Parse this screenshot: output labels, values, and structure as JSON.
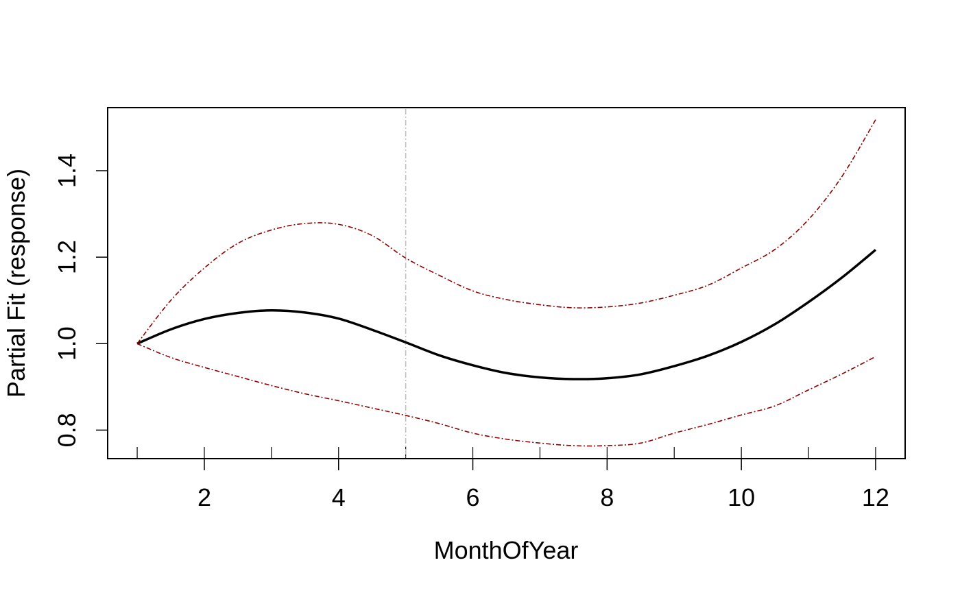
{
  "chart_data": {
    "type": "line",
    "xlabel": "MonthOfYear",
    "ylabel": "Partial Fit (response)",
    "xlim": [
      0.56,
      12.44
    ],
    "ylim": [
      0.734,
      1.546
    ],
    "x_ticks": [
      2,
      4,
      6,
      8,
      10,
      12
    ],
    "y_ticks": [
      0.8,
      1.0,
      1.2,
      1.4
    ],
    "y_tick_labels": [
      "0.8",
      "1.0",
      "1.2",
      "1.4"
    ],
    "rug_x": [
      1,
      2,
      3,
      4,
      5,
      6,
      7,
      8,
      9,
      10,
      11,
      12
    ],
    "reference_line_x": 5,
    "colors": {
      "fit": "#000000",
      "ci": "#8b0000",
      "reference": "#bebebe"
    },
    "series": [
      {
        "role": "fit",
        "x": [
          1,
          1.5,
          2,
          2.5,
          3,
          3.5,
          4,
          4.5,
          5,
          5.5,
          6,
          6.5,
          7,
          7.5,
          8,
          8.5,
          9,
          9.5,
          10,
          10.5,
          11,
          11.5,
          12
        ],
        "y": [
          1.0,
          1.033,
          1.057,
          1.071,
          1.077,
          1.072,
          1.058,
          1.032,
          1.003,
          0.973,
          0.95,
          0.932,
          0.922,
          0.918,
          0.92,
          0.929,
          0.948,
          0.972,
          1.004,
          1.045,
          1.096,
          1.153,
          1.217
        ]
      },
      {
        "role": "upper",
        "x": [
          1,
          1.5,
          2,
          2.5,
          3,
          3.5,
          4,
          4.5,
          5,
          5.5,
          6,
          6.5,
          7,
          7.5,
          8,
          8.5,
          9,
          9.5,
          10,
          10.5,
          11,
          11.5,
          12
        ],
        "y": [
          1.0,
          1.1,
          1.175,
          1.232,
          1.263,
          1.278,
          1.276,
          1.25,
          1.198,
          1.158,
          1.122,
          1.102,
          1.09,
          1.083,
          1.085,
          1.094,
          1.112,
          1.135,
          1.175,
          1.218,
          1.287,
          1.387,
          1.518
        ]
      },
      {
        "role": "lower",
        "x": [
          1,
          1.5,
          2,
          2.5,
          3,
          3.5,
          4,
          4.5,
          5,
          5.5,
          6,
          6.5,
          7,
          7.5,
          8,
          8.5,
          9,
          9.5,
          10,
          10.5,
          11,
          11.5,
          12
        ],
        "y": [
          1.0,
          0.968,
          0.945,
          0.924,
          0.903,
          0.884,
          0.868,
          0.851,
          0.834,
          0.815,
          0.793,
          0.779,
          0.77,
          0.764,
          0.764,
          0.77,
          0.793,
          0.813,
          0.835,
          0.856,
          0.893,
          0.93,
          0.97
        ]
      }
    ]
  }
}
